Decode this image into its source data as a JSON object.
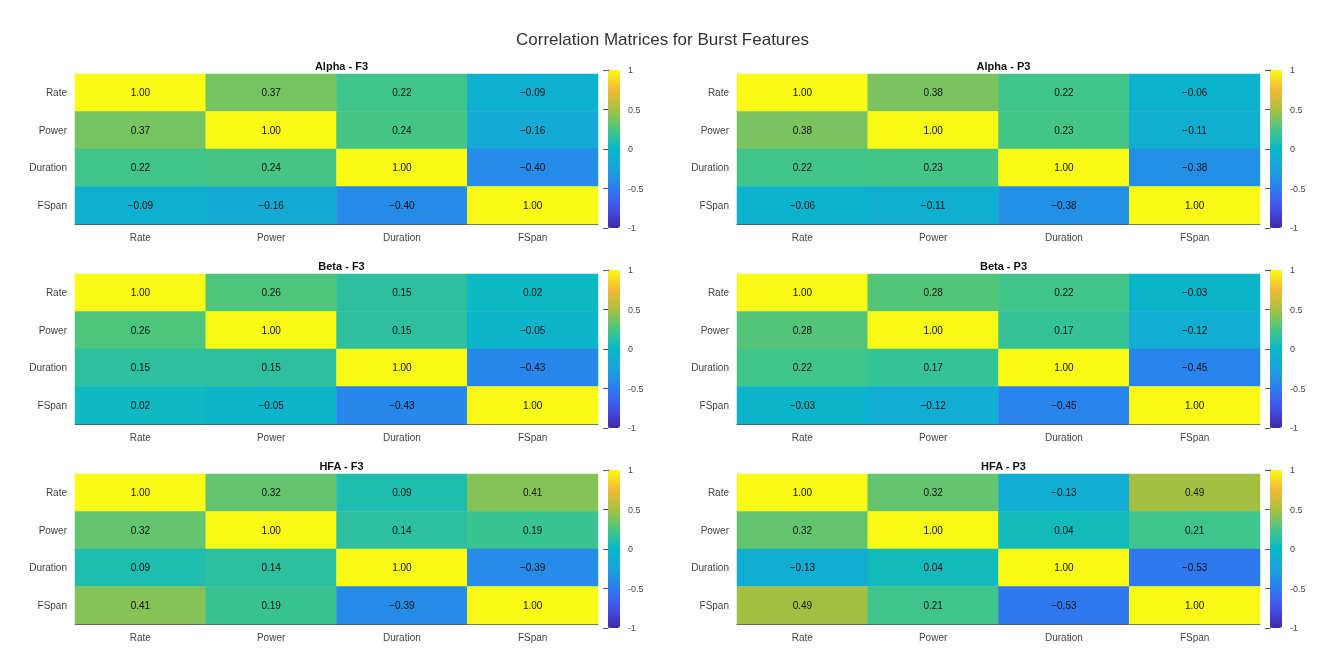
{
  "chart_data": [
    {
      "type": "heatmap",
      "title": "Alpha - F3",
      "annotations": [
        "Correlation Matrices for Burst Features"
      ],
      "categories": [
        "Rate",
        "Power",
        "Duration",
        "FSpan"
      ],
      "y_categories": [
        "Rate",
        "Power",
        "Duration",
        "FSpan"
      ],
      "cells": [
        [
          1,
          0.37,
          0.22,
          -0.09
        ],
        [
          0.37,
          1,
          0.24,
          -0.16
        ],
        [
          0.22,
          0.24,
          1,
          -0.4
        ],
        [
          -0.09,
          -0.16,
          -0.4,
          1
        ]
      ],
      "cell_labels": [
        [
          "1.00",
          "0.37",
          "0.22",
          "−0.09"
        ],
        [
          "0.37",
          "1.00",
          "0.24",
          "−0.16"
        ],
        [
          "0.22",
          "0.24",
          "1.00",
          "−0.40"
        ],
        [
          "−0.09",
          "−0.16",
          "−0.40",
          "1.00"
        ]
      ],
      "clim": [
        -1,
        1
      ],
      "cticks": [
        -1,
        -0.5,
        0,
        0.5,
        1
      ]
    },
    {
      "type": "heatmap",
      "title": "Alpha - P3",
      "categories": [
        "Rate",
        "Power",
        "Duration",
        "FSpan"
      ],
      "y_categories": [
        "Rate",
        "Power",
        "Duration",
        "FSpan"
      ],
      "cells": [
        [
          1,
          0.38,
          0.22,
          -0.06
        ],
        [
          0.38,
          1,
          0.23,
          -0.11
        ],
        [
          0.22,
          0.23,
          1,
          -0.38
        ],
        [
          -0.06,
          -0.11,
          -0.38,
          1
        ]
      ],
      "cell_labels": [
        [
          "1.00",
          "0.38",
          "0.22",
          "−0.06"
        ],
        [
          "0.38",
          "1.00",
          "0.23",
          "−0.11"
        ],
        [
          "0.22",
          "0.23",
          "1.00",
          "−0.38"
        ],
        [
          "−0.06",
          "−0.11",
          "−0.38",
          "1.00"
        ]
      ],
      "clim": [
        -1,
        1
      ],
      "cticks": [
        -1,
        -0.5,
        0,
        0.5,
        1
      ]
    },
    {
      "type": "heatmap",
      "title": "Beta - F3",
      "categories": [
        "Rate",
        "Power",
        "Duration",
        "FSpan"
      ],
      "y_categories": [
        "Rate",
        "Power",
        "Duration",
        "FSpan"
      ],
      "cells": [
        [
          1,
          0.26,
          0.15,
          0.02
        ],
        [
          0.26,
          1,
          0.15,
          -0.05
        ],
        [
          0.15,
          0.15,
          1,
          -0.43
        ],
        [
          0.02,
          -0.05,
          -0.43,
          1
        ]
      ],
      "cell_labels": [
        [
          "1.00",
          "0.26",
          "0.15",
          "0.02"
        ],
        [
          "0.26",
          "1.00",
          "0.15",
          "−0.05"
        ],
        [
          "0.15",
          "0.15",
          "1.00",
          "−0.43"
        ],
        [
          "0.02",
          "−0.05",
          "−0.43",
          "1.00"
        ]
      ],
      "clim": [
        -1,
        1
      ],
      "cticks": [
        -1,
        -0.5,
        0,
        0.5,
        1
      ]
    },
    {
      "type": "heatmap",
      "title": "Beta - P3",
      "categories": [
        "Rate",
        "Power",
        "Duration",
        "FSpan"
      ],
      "y_categories": [
        "Rate",
        "Power",
        "Duration",
        "FSpan"
      ],
      "cells": [
        [
          1,
          0.28,
          0.22,
          -0.03
        ],
        [
          0.28,
          1,
          0.17,
          -0.12
        ],
        [
          0.22,
          0.17,
          1,
          -0.45
        ],
        [
          -0.03,
          -0.12,
          -0.45,
          1
        ]
      ],
      "cell_labels": [
        [
          "1.00",
          "0.28",
          "0.22",
          "−0.03"
        ],
        [
          "0.28",
          "1.00",
          "0.17",
          "−0.12"
        ],
        [
          "0.22",
          "0.17",
          "1.00",
          "−0.45"
        ],
        [
          "−0.03",
          "−0.12",
          "−0.45",
          "1.00"
        ]
      ],
      "clim": [
        -1,
        1
      ],
      "cticks": [
        -1,
        -0.5,
        0,
        0.5,
        1
      ]
    },
    {
      "type": "heatmap",
      "title": "HFA - F3",
      "categories": [
        "Rate",
        "Power",
        "Duration",
        "FSpan"
      ],
      "y_categories": [
        "Rate",
        "Power",
        "Duration",
        "FSpan"
      ],
      "cells": [
        [
          1,
          0.32,
          0.09,
          0.41
        ],
        [
          0.32,
          1,
          0.14,
          0.19
        ],
        [
          0.09,
          0.14,
          1,
          -0.39
        ],
        [
          0.41,
          0.19,
          -0.39,
          1
        ]
      ],
      "cell_labels": [
        [
          "1.00",
          "0.32",
          "0.09",
          "0.41"
        ],
        [
          "0.32",
          "1.00",
          "0.14",
          "0.19"
        ],
        [
          "0.09",
          "0.14",
          "1.00",
          "−0.39"
        ],
        [
          "0.41",
          "0.19",
          "−0.39",
          "1.00"
        ]
      ],
      "clim": [
        -1,
        1
      ],
      "cticks": [
        -1,
        -0.5,
        0,
        0.5,
        1
      ]
    },
    {
      "type": "heatmap",
      "title": "HFA - P3",
      "categories": [
        "Rate",
        "Power",
        "Duration",
        "FSpan"
      ],
      "y_categories": [
        "Rate",
        "Power",
        "Duration",
        "FSpan"
      ],
      "cells": [
        [
          1,
          0.32,
          -0.13,
          0.49
        ],
        [
          0.32,
          1,
          0.04,
          0.21
        ],
        [
          -0.13,
          0.04,
          1,
          -0.53
        ],
        [
          0.49,
          0.21,
          -0.53,
          1
        ]
      ],
      "cell_labels": [
        [
          "1.00",
          "0.32",
          "−0.13",
          "0.49"
        ],
        [
          "0.32",
          "1.00",
          "0.04",
          "0.21"
        ],
        [
          "−0.13",
          "0.04",
          "1.00",
          "−0.53"
        ],
        [
          "0.49",
          "0.21",
          "−0.53",
          "1.00"
        ]
      ],
      "clim": [
        -1,
        1
      ],
      "cticks": [
        -1,
        -0.5,
        0,
        0.5,
        1
      ]
    }
  ]
}
